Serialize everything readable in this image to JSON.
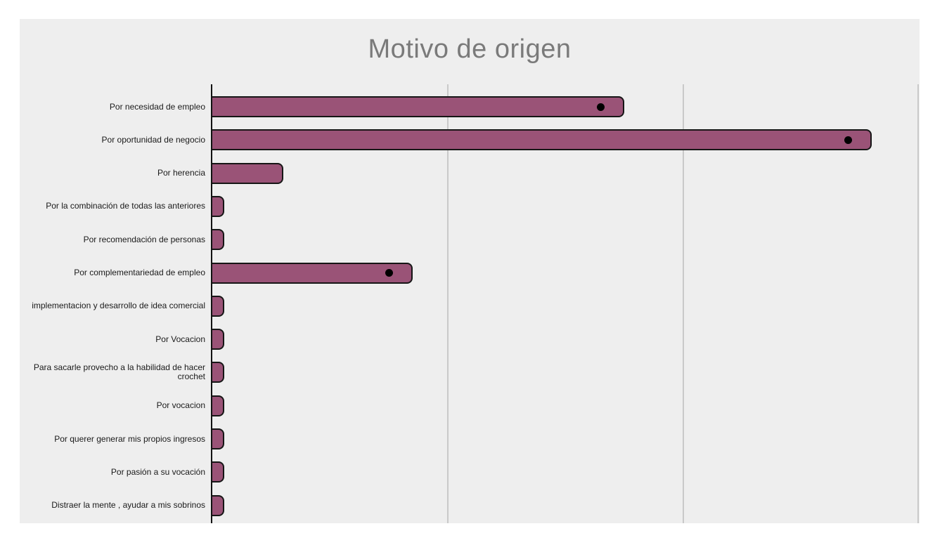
{
  "page": {
    "background": "#ffffff"
  },
  "chart": {
    "panel_background": "#eeeeee",
    "title_color": "#7a7a7a",
    "bar_fill": "#9a5377",
    "bar_border": "#161616",
    "axis_color": "#111111",
    "gridline_color": "#c9c9c9",
    "marker_color": "#000000",
    "label_color": "#1a1a1a"
  },
  "chart_data": {
    "type": "bar",
    "orientation": "horizontal",
    "title": "Motivo de origen",
    "xlabel": "",
    "ylabel": "",
    "legend": "none",
    "grid": true,
    "xlim": [
      0,
      60
    ],
    "gridlines_x": [
      20,
      40,
      60
    ],
    "x_tick_labels_visible": false,
    "categories": [
      "Por necesidad de empleo",
      "Por oportunidad de negocio",
      "Por herencia",
      "Por la combinación de todas las anteriores",
      "Por recomendación de personas",
      "Por complementariedad de empleo",
      "implementacion y desarrollo de idea comercial",
      "Por Vocacion",
      "Para sacarle provecho a la habilidad de hacer crochet",
      "Por vocacion",
      "Por querer generar mis propios ingresos",
      "Por pasión a su vocación",
      "Distraer la mente , ayudar a mis sobrinos"
    ],
    "values": [
      35,
      56,
      6,
      1,
      1,
      17,
      1,
      1,
      1,
      1,
      1,
      1,
      1
    ],
    "point_markers": [
      {
        "category_index": 0,
        "value": 33
      },
      {
        "category_index": 1,
        "value": 54
      },
      {
        "category_index": 5,
        "value": 15
      }
    ]
  }
}
